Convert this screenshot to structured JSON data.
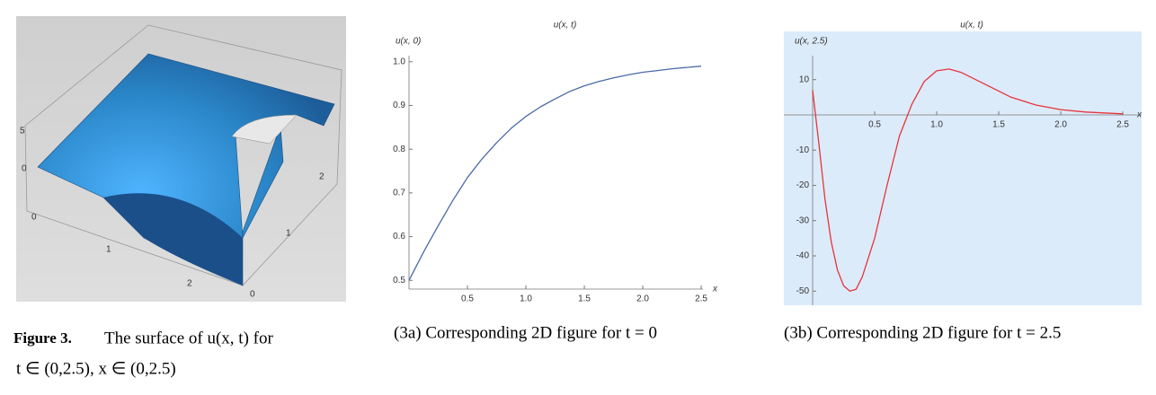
{
  "figure": {
    "label": "Figure 3.",
    "caption_line1": "The surface of u(x, t) for",
    "caption_line2": "t ∈ (0,2.5), x ∈ (0,2.5)",
    "surface_ticks": {
      "vertical": [
        "5",
        "0"
      ],
      "front": [
        "0",
        "1",
        "2"
      ],
      "side": [
        "0",
        "1",
        "2"
      ]
    },
    "caption_a": "(3a) Corresponding 2D figure for t = 0",
    "caption_b": "(3b) Corresponding 2D figure for t = 2.5"
  },
  "chart_data": [
    {
      "type": "line",
      "title": "u(x, t)",
      "ylabel": "u(x, 0)",
      "xlabel": "x",
      "x": [
        0,
        0.125,
        0.25,
        0.375,
        0.5,
        0.625,
        0.75,
        0.875,
        1.0,
        1.125,
        1.25,
        1.375,
        1.5,
        1.625,
        1.75,
        1.875,
        2.0,
        2.125,
        2.25,
        2.375,
        2.5
      ],
      "series": [
        {
          "name": "u(x, 0)",
          "color": "#4a6aa8",
          "values": [
            0.5,
            0.565,
            0.625,
            0.683,
            0.735,
            0.778,
            0.815,
            0.848,
            0.875,
            0.897,
            0.915,
            0.932,
            0.945,
            0.955,
            0.963,
            0.97,
            0.976,
            0.98,
            0.984,
            0.987,
            0.99
          ]
        }
      ],
      "xlim": [
        0,
        2.515
      ],
      "ylim": [
        0.48,
        1.014
      ],
      "xticks": [
        0.5,
        {
          "value": 1,
          "label": "1.0"
        },
        1.5,
        {
          "value": 2,
          "label": "2.0"
        },
        2.5
      ],
      "yticks": [
        0.5,
        0.6,
        0.7,
        0.8,
        0.9,
        {
          "value": 1,
          "label": "1.0"
        }
      ]
    },
    {
      "type": "line",
      "title": "u(x, t)",
      "ylabel": "u(x, 2.5)",
      "xlabel": "x",
      "background": "#dcebfa",
      "x": [
        0,
        0.05,
        0.1,
        0.15,
        0.2,
        0.25,
        0.3,
        0.35,
        0.4,
        0.5,
        0.6,
        0.7,
        0.8,
        0.9,
        1.0,
        1.1,
        1.2,
        1.4,
        1.6,
        1.8,
        2.0,
        2.2,
        2.5
      ],
      "series": [
        {
          "name": "u(x, 2.5)",
          "color": "#e8333a",
          "values": [
            7,
            -8,
            -24,
            -36,
            -44,
            -48.5,
            -50,
            -49.5,
            -46,
            -35,
            -20,
            -6,
            3,
            9.5,
            12.5,
            13,
            12,
            8.5,
            5,
            2.8,
            1.5,
            0.8,
            0.3
          ]
        }
      ],
      "xlim": [
        -0.232,
        2.652
      ],
      "ylim": [
        -54,
        16.8
      ],
      "xticks": [
        0.5,
        {
          "value": 1,
          "label": "1.0"
        },
        1.5,
        {
          "value": 2,
          "label": "2.0"
        },
        2.5
      ],
      "yticks": [
        10,
        -10,
        -20,
        -30,
        -40,
        -50
      ]
    }
  ]
}
